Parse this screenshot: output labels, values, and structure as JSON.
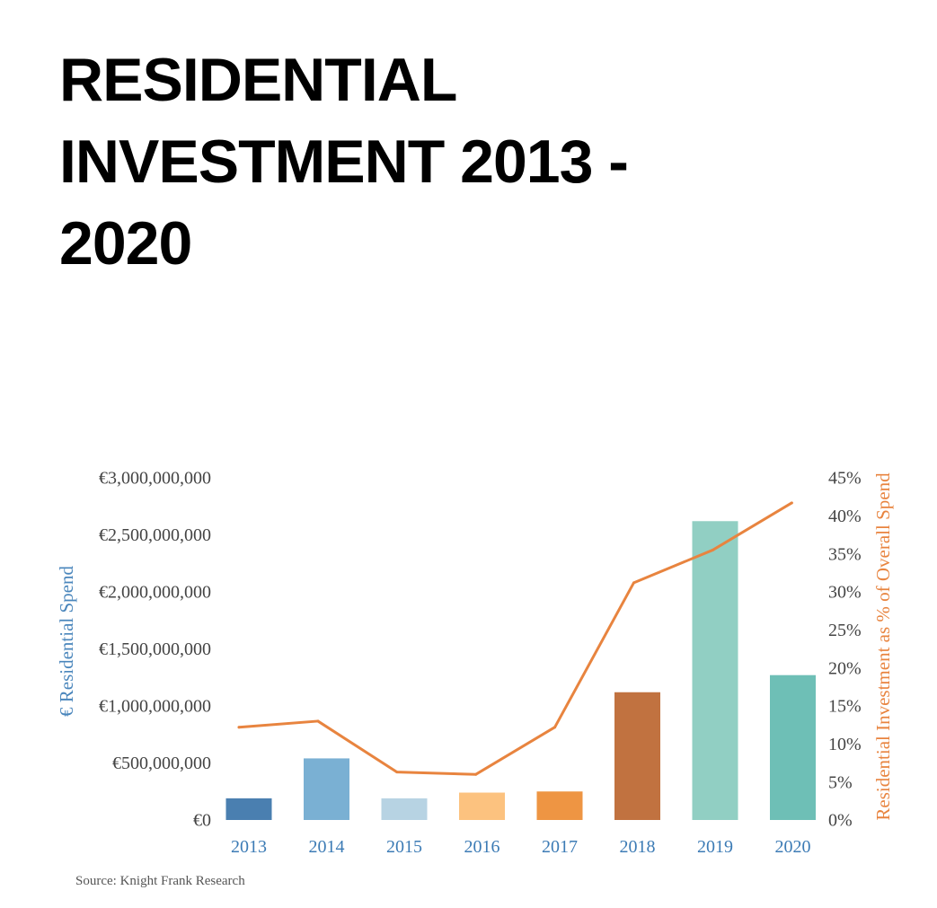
{
  "header": {
    "title_lines": [
      "RESIDENTIAL",
      "INVESTMENT 2013 -",
      "2020"
    ]
  },
  "chart_data": {
    "type": "bar",
    "title": "RESIDENTIAL INVESTMENT 2013 - 2020",
    "categories": [
      "2013",
      "2014",
      "2015",
      "2016",
      "2017",
      "2018",
      "2019",
      "2020"
    ],
    "series": [
      {
        "name": "€ Residential Spend",
        "type": "bar",
        "axis": "left",
        "values": [
          190000000,
          540000000,
          190000000,
          240000000,
          250000000,
          1120000000,
          2620000000,
          1270000000
        ],
        "colors": [
          "#4A7FB0",
          "#7AB0D3",
          "#B7D3E3",
          "#FCC27F",
          "#EE9543",
          "#C17240",
          "#91CFC3",
          "#6EBFB6"
        ]
      },
      {
        "name": "Residential Investment as % of Overall Spend",
        "type": "line",
        "axis": "right",
        "values": [
          12.2,
          13.0,
          6.3,
          6.0,
          12.2,
          31.2,
          35.5,
          41.7
        ],
        "color": "#E8843F"
      }
    ],
    "ylabel": "€ Residential Spend",
    "y2label": "Residential Investment as % of Overall Spend",
    "ylim": [
      0,
      3000000000
    ],
    "y2lim": [
      0,
      45
    ],
    "y_ticks": [
      "€0",
      "€500,000,000",
      "€1,000,000,000",
      "€1,500,000,000",
      "€2,000,000,000",
      "€2,500,000,000",
      "€3,000,000,000"
    ],
    "y2_ticks": [
      "0%",
      "5%",
      "10%",
      "15%",
      "20%",
      "25%",
      "30%",
      "35%",
      "40%",
      "45%"
    ],
    "axis_label_colors": {
      "left": "#4A86BC",
      "right": "#E8843F",
      "x_ticks": "#3C7BB5",
      "y_ticks": "#444444"
    },
    "grid": false,
    "source": "Source: Knight Frank Research"
  }
}
